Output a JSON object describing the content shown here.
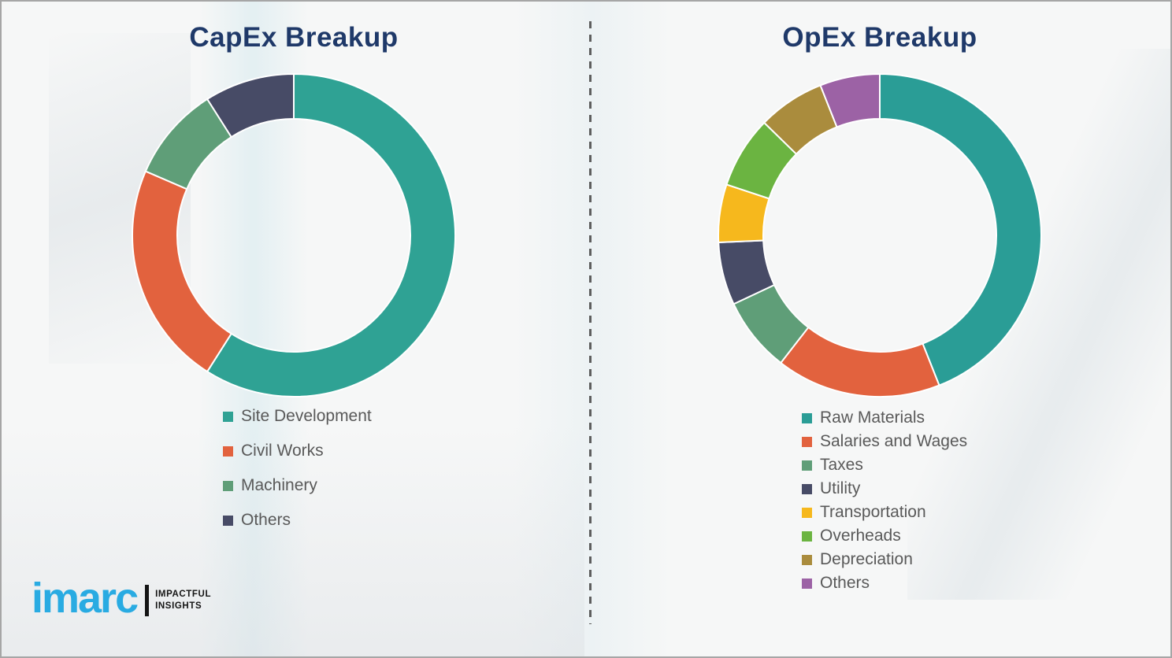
{
  "colors": {
    "title_text": "#1f3969",
    "legend_text": "#595959",
    "brand_blue": "#29abe2",
    "divider_gray": "#5e5e5e",
    "page_border": "#a6a6a6"
  },
  "chart_data": [
    {
      "type": "pie",
      "subtype": "donut",
      "title": "CapEx Breakup",
      "legend_position": "below-left",
      "labels": [
        "Site Development",
        "Civil Works",
        "Machinery",
        "Others"
      ],
      "values": [
        59,
        22.5,
        9.5,
        9
      ],
      "colors": [
        "#2fa294",
        "#e2623e",
        "#5f9e78",
        "#474b66"
      ],
      "start_angle_deg": 0,
      "direction": "clockwise"
    },
    {
      "type": "pie",
      "subtype": "donut",
      "title": "OpEx Breakup",
      "legend_position": "below-left",
      "labels": [
        "Raw Materials",
        "Salaries and Wages",
        "Taxes",
        "Utility",
        "Transportation",
        "Overheads",
        "Depreciation",
        "Others"
      ],
      "values": [
        44,
        16.5,
        7.5,
        6.3,
        5.8,
        7.2,
        6.7,
        6
      ],
      "colors": [
        "#2a9d96",
        "#e2623e",
        "#5f9e78",
        "#474b66",
        "#f6b81d",
        "#6bb441",
        "#aa8c3d",
        "#9c62a5"
      ],
      "start_angle_deg": 0,
      "direction": "clockwise"
    }
  ],
  "logo": {
    "brand": "imarc",
    "tagline_line1": "IMPACTFUL",
    "tagline_line2": "INSIGHTS"
  }
}
